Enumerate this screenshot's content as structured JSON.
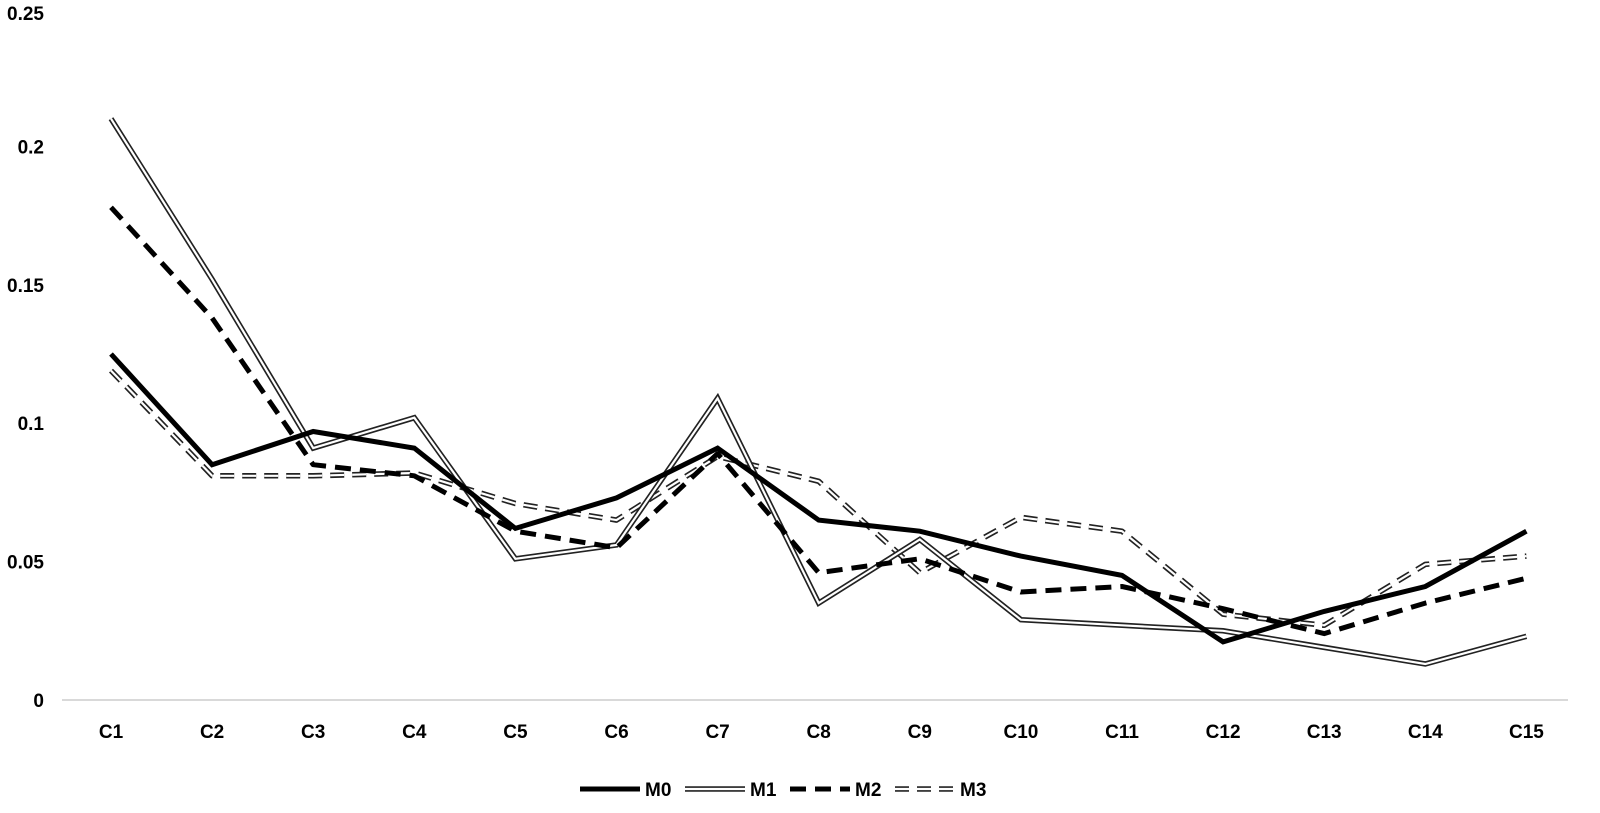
{
  "chart_data": {
    "type": "line",
    "categories": [
      "C1",
      "C2",
      "C3",
      "C4",
      "C5",
      "C6",
      "C7",
      "C8",
      "C9",
      "C10",
      "C11",
      "C12",
      "C13",
      "C14",
      "C15"
    ],
    "series": [
      {
        "name": "M0",
        "values": [
          0.125,
          0.085,
          0.097,
          0.091,
          0.062,
          0.073,
          0.091,
          0.065,
          0.061,
          0.052,
          0.045,
          0.021,
          0.032,
          0.041,
          0.061
        ]
      },
      {
        "name": "M1",
        "values": [
          0.21,
          0.152,
          0.091,
          0.102,
          0.051,
          0.056,
          0.109,
          0.035,
          0.058,
          0.029,
          0.027,
          0.025,
          0.019,
          0.013,
          0.023
        ]
      },
      {
        "name": "M2",
        "values": [
          0.178,
          0.138,
          0.085,
          0.081,
          0.061,
          0.055,
          0.089,
          0.046,
          0.051,
          0.039,
          0.041,
          0.033,
          0.024,
          0.035,
          0.044
        ]
      },
      {
        "name": "M3",
        "values": [
          0.119,
          0.081,
          0.081,
          0.082,
          0.071,
          0.065,
          0.088,
          0.079,
          0.046,
          0.066,
          0.061,
          0.031,
          0.027,
          0.049,
          0.052
        ]
      }
    ],
    "yticks": [
      "0",
      "0.05",
      "0.1",
      "0.15",
      "0.2",
      "0.25"
    ],
    "ylim": [
      0,
      0.25
    ],
    "title": "",
    "xlabel": "",
    "ylabel": "",
    "grid": false,
    "legend": "bottom-center",
    "colors": {
      "line": "#000000",
      "axis": "#d9d9d9",
      "background": "#ffffff"
    }
  }
}
